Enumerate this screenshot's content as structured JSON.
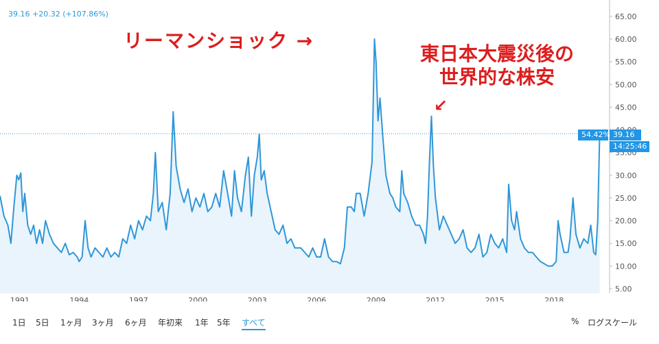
{
  "header": {
    "readout": "39.16 +20.32 (+107.86%)"
  },
  "annotations": {
    "lehman": "リーマンショック  →",
    "quake_line1": "東日本大震災後の",
    "quake_line2": "世界的な株安",
    "quake_arrow": "↙"
  },
  "badges": {
    "pct": "54.42%",
    "price": "39.16",
    "time": "14:25:46"
  },
  "toolbar": {
    "ranges": [
      "1日",
      "5日",
      "1ヶ月",
      "3ヶ月",
      "6ヶ月",
      "年初来",
      "1年",
      "5年",
      "すべて"
    ],
    "active_range": "すべて",
    "percent_label": "%",
    "log_label": "ログスケール"
  },
  "colors": {
    "line": "#2f96d7",
    "fill": "#e9f4fc",
    "annotation": "#dd1d1d",
    "badge": "#2196e6",
    "axis_text": "#555555"
  },
  "chart_data": {
    "type": "area",
    "x_ticks": [
      "1991",
      "1994",
      "1997",
      "2000",
      "2003",
      "2006",
      "2009",
      "2012",
      "2015",
      "2018"
    ],
    "y_ticks": [
      "5.00",
      "10.00",
      "15.00",
      "20.00",
      "25.00",
      "30.00",
      "35.00",
      "40.00",
      "45.00",
      "50.00",
      "55.00",
      "60.00",
      "65.00"
    ],
    "ylim": [
      4,
      68
    ],
    "xlim": [
      1990.0,
      2020.8
    ],
    "last_value": 39.16,
    "series": [
      {
        "points": [
          [
            1990.0,
            25.5
          ],
          [
            1990.2,
            21
          ],
          [
            1990.4,
            19
          ],
          [
            1990.55,
            15
          ],
          [
            1990.7,
            23
          ],
          [
            1990.85,
            30
          ],
          [
            1990.95,
            29
          ],
          [
            1991.05,
            30.5
          ],
          [
            1991.15,
            22
          ],
          [
            1991.25,
            26
          ],
          [
            1991.4,
            19
          ],
          [
            1991.55,
            17
          ],
          [
            1991.7,
            19
          ],
          [
            1991.85,
            15
          ],
          [
            1992.0,
            18
          ],
          [
            1992.15,
            15
          ],
          [
            1992.3,
            20
          ],
          [
            1992.5,
            17
          ],
          [
            1992.7,
            15
          ],
          [
            1992.9,
            14
          ],
          [
            1993.1,
            13
          ],
          [
            1993.3,
            15
          ],
          [
            1993.5,
            12.5
          ],
          [
            1993.7,
            13
          ],
          [
            1993.9,
            12
          ],
          [
            1994.0,
            11
          ],
          [
            1994.15,
            12
          ],
          [
            1994.3,
            20
          ],
          [
            1994.45,
            14
          ],
          [
            1994.6,
            12
          ],
          [
            1994.8,
            14
          ],
          [
            1995.0,
            13
          ],
          [
            1995.2,
            12
          ],
          [
            1995.4,
            14
          ],
          [
            1995.6,
            12
          ],
          [
            1995.8,
            13
          ],
          [
            1996.0,
            12
          ],
          [
            1996.2,
            16
          ],
          [
            1996.4,
            15
          ],
          [
            1996.6,
            19
          ],
          [
            1996.8,
            16
          ],
          [
            1997.0,
            20
          ],
          [
            1997.2,
            18
          ],
          [
            1997.4,
            21
          ],
          [
            1997.6,
            20
          ],
          [
            1997.75,
            26
          ],
          [
            1997.85,
            35
          ],
          [
            1998.0,
            22
          ],
          [
            1998.2,
            24
          ],
          [
            1998.4,
            18
          ],
          [
            1998.6,
            26
          ],
          [
            1998.75,
            44
          ],
          [
            1998.9,
            32
          ],
          [
            1999.1,
            27
          ],
          [
            1999.3,
            24
          ],
          [
            1999.5,
            27
          ],
          [
            1999.7,
            22
          ],
          [
            1999.9,
            25
          ],
          [
            2000.1,
            23
          ],
          [
            2000.3,
            26
          ],
          [
            2000.5,
            22
          ],
          [
            2000.7,
            23
          ],
          [
            2000.9,
            26
          ],
          [
            2001.1,
            23
          ],
          [
            2001.3,
            31
          ],
          [
            2001.5,
            26
          ],
          [
            2001.7,
            21
          ],
          [
            2001.85,
            31
          ],
          [
            2002.0,
            25
          ],
          [
            2002.2,
            22
          ],
          [
            2002.4,
            30
          ],
          [
            2002.55,
            34
          ],
          [
            2002.7,
            21
          ],
          [
            2002.85,
            30
          ],
          [
            2003.0,
            34
          ],
          [
            2003.1,
            39
          ],
          [
            2003.2,
            29
          ],
          [
            2003.35,
            31
          ],
          [
            2003.5,
            26
          ],
          [
            2003.7,
            22
          ],
          [
            2003.9,
            18
          ],
          [
            2004.1,
            17
          ],
          [
            2004.3,
            19
          ],
          [
            2004.5,
            15
          ],
          [
            2004.7,
            16
          ],
          [
            2004.9,
            14
          ],
          [
            2005.2,
            14
          ],
          [
            2005.4,
            13
          ],
          [
            2005.6,
            12
          ],
          [
            2005.8,
            14
          ],
          [
            2006.0,
            12
          ],
          [
            2006.2,
            12
          ],
          [
            2006.4,
            16
          ],
          [
            2006.6,
            12
          ],
          [
            2006.8,
            11
          ],
          [
            2007.0,
            11
          ],
          [
            2007.2,
            10.5
          ],
          [
            2007.4,
            14
          ],
          [
            2007.55,
            23
          ],
          [
            2007.75,
            23
          ],
          [
            2007.9,
            22
          ],
          [
            2008.0,
            26
          ],
          [
            2008.2,
            26
          ],
          [
            2008.4,
            21
          ],
          [
            2008.6,
            26
          ],
          [
            2008.8,
            33
          ],
          [
            2008.92,
            60
          ],
          [
            2009.0,
            55
          ],
          [
            2009.1,
            42
          ],
          [
            2009.2,
            47
          ],
          [
            2009.35,
            38
          ],
          [
            2009.5,
            30
          ],
          [
            2009.7,
            26
          ],
          [
            2009.85,
            25
          ],
          [
            2010.0,
            23
          ],
          [
            2010.2,
            22
          ],
          [
            2010.3,
            31
          ],
          [
            2010.4,
            26
          ],
          [
            2010.6,
            24
          ],
          [
            2010.8,
            21
          ],
          [
            2011.0,
            19
          ],
          [
            2011.2,
            19
          ],
          [
            2011.4,
            17
          ],
          [
            2011.5,
            15
          ],
          [
            2011.6,
            21
          ],
          [
            2011.7,
            33
          ],
          [
            2011.8,
            43
          ],
          [
            2011.9,
            32
          ],
          [
            2012.0,
            25
          ],
          [
            2012.2,
            18
          ],
          [
            2012.4,
            21
          ],
          [
            2012.6,
            19
          ],
          [
            2012.8,
            17
          ],
          [
            2013.0,
            15
          ],
          [
            2013.2,
            16
          ],
          [
            2013.4,
            18
          ],
          [
            2013.6,
            14
          ],
          [
            2013.8,
            13
          ],
          [
            2014.0,
            14
          ],
          [
            2014.2,
            17
          ],
          [
            2014.4,
            12
          ],
          [
            2014.6,
            13
          ],
          [
            2014.8,
            17
          ],
          [
            2015.0,
            15
          ],
          [
            2015.2,
            14
          ],
          [
            2015.4,
            16
          ],
          [
            2015.6,
            13
          ],
          [
            2015.7,
            28
          ],
          [
            2015.85,
            20
          ],
          [
            2016.0,
            18
          ],
          [
            2016.1,
            22
          ],
          [
            2016.3,
            16
          ],
          [
            2016.5,
            14
          ],
          [
            2016.7,
            13
          ],
          [
            2016.9,
            13
          ],
          [
            2017.1,
            12
          ],
          [
            2017.3,
            11
          ],
          [
            2017.5,
            10.5
          ],
          [
            2017.7,
            10
          ],
          [
            2017.9,
            10
          ],
          [
            2018.1,
            11
          ],
          [
            2018.2,
            20
          ],
          [
            2018.3,
            17
          ],
          [
            2018.5,
            13
          ],
          [
            2018.7,
            13
          ],
          [
            2018.8,
            16
          ],
          [
            2018.95,
            25
          ],
          [
            2019.1,
            17
          ],
          [
            2019.3,
            14
          ],
          [
            2019.5,
            16
          ],
          [
            2019.7,
            15
          ],
          [
            2019.85,
            19
          ],
          [
            2020.0,
            13
          ],
          [
            2020.1,
            12.5
          ],
          [
            2020.2,
            20
          ],
          [
            2020.3,
            39.16
          ]
        ]
      }
    ]
  }
}
